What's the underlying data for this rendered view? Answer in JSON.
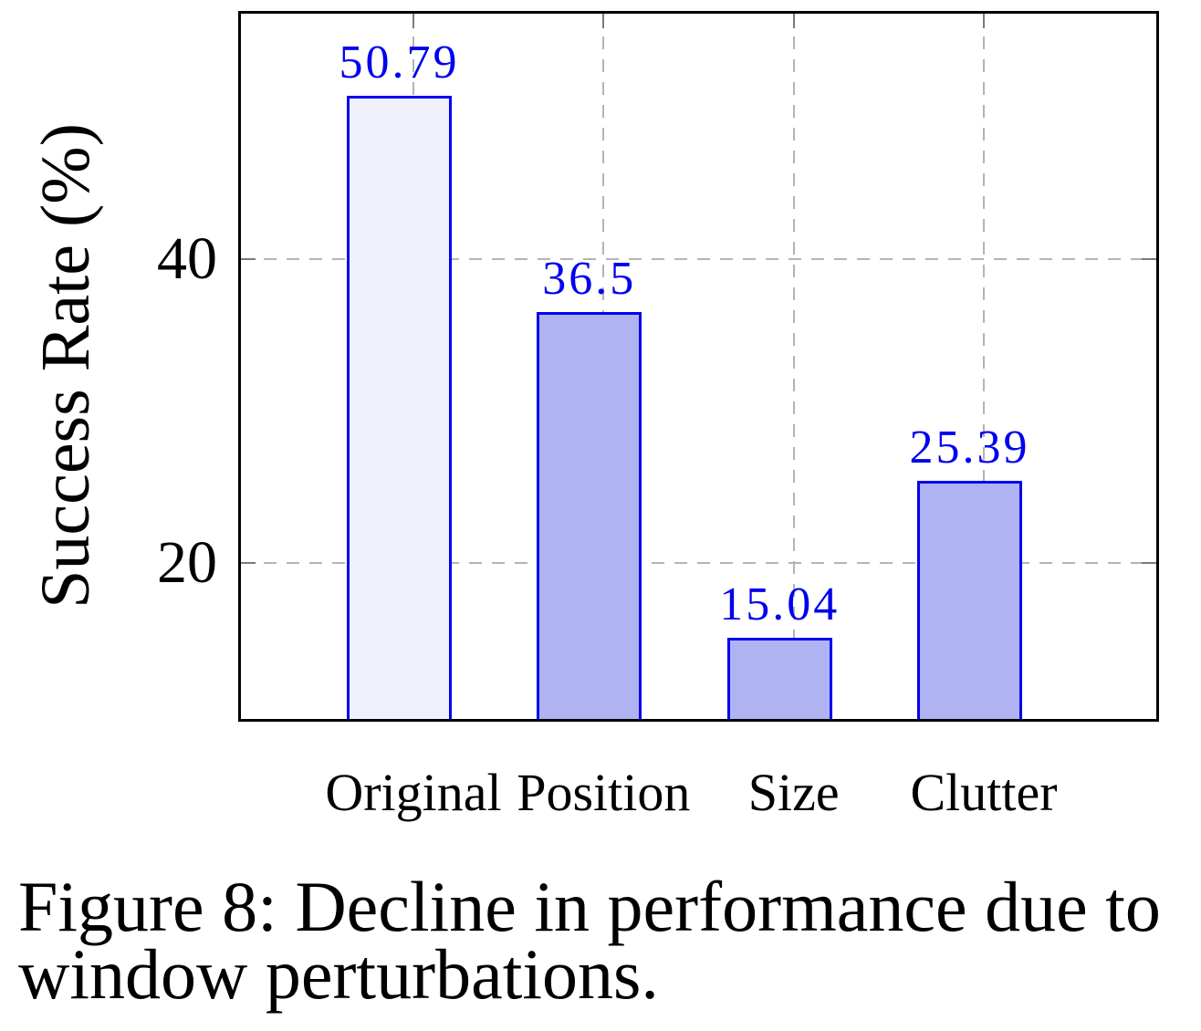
{
  "figure": {
    "caption": "Figure 8: Decline in performance due to window perturbations.",
    "caption_lines": [
      "Figure 8: Decline in performance due to",
      "window perturbations."
    ]
  },
  "chart_data": {
    "type": "bar",
    "title": "",
    "xlabel": "",
    "ylabel": "Success Rate (%)",
    "categories": [
      "Original",
      "Position",
      "Size",
      "Clutter"
    ],
    "values": [
      50.79,
      36.5,
      15.04,
      25.39
    ],
    "value_labels": [
      "50.79",
      "36.5",
      "15.04",
      "25.39"
    ],
    "ytick_values": [
      20,
      40
    ],
    "ytick_labels": [
      "20",
      "40"
    ],
    "ylim": [
      9.7,
      56.2
    ],
    "grid": "dashed",
    "legend": "none",
    "colors": {
      "bar_fills": [
        "#eff0fb",
        "#b0b3f2",
        "#b0b3f2",
        "#b0b3f2"
      ],
      "bar_border": "#0202ee",
      "value_label_text": "#0000ee",
      "gridline": "#b4b4b4",
      "axis_frame": "#000000",
      "text": "#000000"
    }
  }
}
